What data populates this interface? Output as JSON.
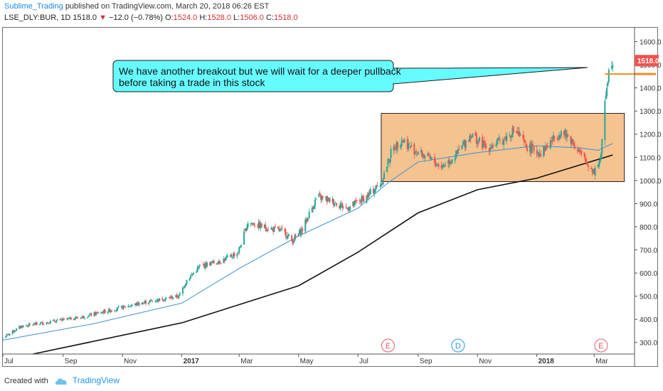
{
  "header": {
    "author": "Sublime_Trading",
    "published": "published on TradingView.com, March 20, 2018 06:26 EST"
  },
  "ticker": {
    "symbol": "LSE_DLY:BUR, 1D",
    "last": "1518.0",
    "change": "−12.0 (−0.78%)",
    "o_label": "O:",
    "o": "1524.0",
    "h_label": "H:",
    "h": "1528.0",
    "l_label": "L:",
    "l": "1506.0",
    "c_label": "C:",
    "c": "1518.0"
  },
  "footer": {
    "created": "Created with",
    "brand": "TradingView"
  },
  "annotation": {
    "line1": "We have another breakout but we will wait for a deeper pullback",
    "line2": "before taking a trade in this stock"
  },
  "colors": {
    "up": "#26a69a",
    "down": "#ef5350",
    "ma_short": "#3d8fd1",
    "ma_long": "#111111",
    "box_fill": "#f4c390",
    "callout": "#66fbff",
    "orange_line": "#f28c1d",
    "price_tag": "#ef5350"
  },
  "events": [
    {
      "letter": "E",
      "date": "2017-08-01",
      "color": "#e05a6a"
    },
    {
      "letter": "D",
      "date": "2017-10-12",
      "color": "#2196f3"
    },
    {
      "letter": "E",
      "date": "2018-03-08",
      "color": "#e05a6a"
    }
  ],
  "chart_data": {
    "type": "candlestick",
    "x_range": [
      "2016-07-01",
      "2018-04-10"
    ],
    "x_ticks": [
      {
        "date": "2016-07-01",
        "label": "Jul"
      },
      {
        "date": "2016-09-01",
        "label": "Sep"
      },
      {
        "date": "2016-11-01",
        "label": "Nov"
      },
      {
        "date": "2017-01-01",
        "label": "2017"
      },
      {
        "date": "2017-03-01",
        "label": "Mar"
      },
      {
        "date": "2017-05-01",
        "label": "May"
      },
      {
        "date": "2017-07-01",
        "label": "Jul"
      },
      {
        "date": "2017-09-01",
        "label": "Sep"
      },
      {
        "date": "2017-11-01",
        "label": "Nov"
      },
      {
        "date": "2018-01-01",
        "label": "2018"
      },
      {
        "date": "2018-03-01",
        "label": "Mar"
      }
    ],
    "y_range": [
      250,
      1660
    ],
    "y_ticks": [
      300,
      400,
      500,
      600,
      700,
      800,
      900,
      1000,
      1100,
      1200,
      1300,
      1400,
      1500,
      1600
    ],
    "y_tick_labels": [
      "300.0",
      "400.0",
      "500.0",
      "600.0",
      "700.0",
      "800.0",
      "900.0",
      "1000.0",
      "1100.0",
      "1200.0",
      "1300.0",
      "1400.0",
      "1500.0",
      "1600.0"
    ],
    "last_price_label": "1518.0",
    "close_anchors": [
      [
        "2016-07-01",
        320
      ],
      [
        "2016-07-20",
        370
      ],
      [
        "2016-08-20",
        390
      ],
      [
        "2016-09-20",
        410
      ],
      [
        "2016-10-20",
        440
      ],
      [
        "2016-11-20",
        470
      ],
      [
        "2016-12-15",
        490
      ],
      [
        "2016-12-29",
        500
      ],
      [
        "2017-01-06",
        570
      ],
      [
        "2017-01-20",
        630
      ],
      [
        "2017-02-15",
        660
      ],
      [
        "2017-02-28",
        690
      ],
      [
        "2017-03-10",
        820
      ],
      [
        "2017-03-25",
        800
      ],
      [
        "2017-04-15",
        780
      ],
      [
        "2017-04-25",
        740
      ],
      [
        "2017-05-05",
        790
      ],
      [
        "2017-05-20",
        930
      ],
      [
        "2017-06-05",
        910
      ],
      [
        "2017-06-20",
        880
      ],
      [
        "2017-07-10",
        930
      ],
      [
        "2017-07-25",
        990
      ],
      [
        "2017-08-05",
        1130
      ],
      [
        "2017-08-15",
        1180
      ],
      [
        "2017-08-25",
        1140
      ],
      [
        "2017-09-10",
        1100
      ],
      [
        "2017-09-25",
        1060
      ],
      [
        "2017-10-10",
        1110
      ],
      [
        "2017-10-25",
        1200
      ],
      [
        "2017-11-10",
        1140
      ],
      [
        "2017-11-25",
        1170
      ],
      [
        "2017-12-10",
        1220
      ],
      [
        "2017-12-20",
        1150
      ],
      [
        "2018-01-05",
        1120
      ],
      [
        "2018-01-25",
        1210
      ],
      [
        "2018-02-05",
        1180
      ],
      [
        "2018-02-20",
        1080
      ],
      [
        "2018-03-01",
        1040
      ],
      [
        "2018-03-08",
        1100
      ],
      [
        "2018-03-12",
        1350
      ],
      [
        "2018-03-15",
        1450
      ],
      [
        "2018-03-19",
        1520
      ],
      [
        "2018-03-20",
        1518
      ]
    ],
    "ma_short": [
      [
        "2016-07-01",
        310
      ],
      [
        "2016-10-01",
        380
      ],
      [
        "2017-01-01",
        470
      ],
      [
        "2017-03-01",
        620
      ],
      [
        "2017-05-01",
        760
      ],
      [
        "2017-07-01",
        880
      ],
      [
        "2017-08-01",
        990
      ],
      [
        "2017-09-01",
        1080
      ],
      [
        "2017-11-01",
        1120
      ],
      [
        "2018-01-01",
        1150
      ],
      [
        "2018-02-15",
        1140
      ],
      [
        "2018-03-05",
        1130
      ],
      [
        "2018-03-20",
        1160
      ]
    ],
    "ma_long": [
      [
        "2016-08-01",
        250
      ],
      [
        "2017-01-01",
        385
      ],
      [
        "2017-05-01",
        545
      ],
      [
        "2017-07-01",
        690
      ],
      [
        "2017-09-01",
        860
      ],
      [
        "2017-11-01",
        960
      ],
      [
        "2018-01-01",
        1010
      ],
      [
        "2018-03-20",
        1110
      ]
    ],
    "range_box": {
      "start": "2017-07-25",
      "end": "2018-04-01",
      "low": 995,
      "high": 1290
    },
    "breakout_level": {
      "start": "2018-03-12",
      "value": 1460
    }
  }
}
